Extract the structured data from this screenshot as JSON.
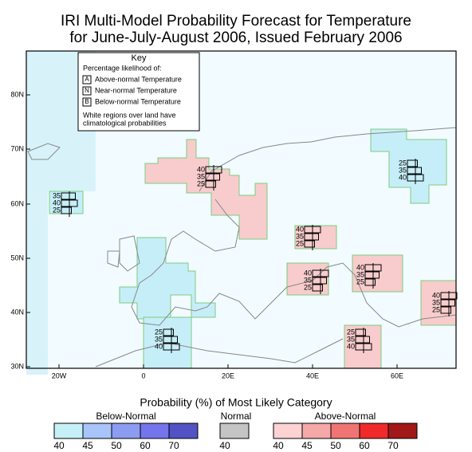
{
  "title": [
    "IRI Multi-Model Probability Forecast for Temperature",
    "for June-July-August 2006, Issued February 2006"
  ],
  "key": {
    "title": "Key",
    "subtitle": "Percentage likelihood of:",
    "items": [
      {
        "letter": "A",
        "text": "Above-normal Temperature"
      },
      {
        "letter": "N",
        "text": "Near-normal Temperature"
      },
      {
        "letter": "B",
        "text": "Below-normal Temperature"
      }
    ],
    "note": [
      "White regions over land have",
      "climatological probabilities"
    ]
  },
  "lat_labels": [
    "80N",
    "70N",
    "60N",
    "50N",
    "40N",
    "30N"
  ],
  "lon_labels": [
    "20W",
    "0",
    "20E",
    "40E",
    "60E"
  ],
  "glyphs": [
    [
      40,
      35,
      25
    ],
    [
      25,
      35,
      40
    ],
    [
      35,
      40,
      25
    ],
    [
      40,
      35,
      25
    ],
    [
      40,
      35,
      25
    ],
    [
      40,
      35,
      25
    ],
    [
      40,
      35,
      25
    ],
    [
      25,
      35,
      40
    ],
    [
      25,
      35,
      40
    ]
  ],
  "legend": {
    "title": "Probability (%) of Most Likely Category",
    "groups": [
      {
        "name": "Below-Normal",
        "colors": [
          "#c6f0f8",
          "#a8c4f8",
          "#8c9cf0",
          "#7474ec",
          "#5252c4"
        ],
        "labels": [
          40,
          45,
          50,
          60,
          70
        ]
      },
      {
        "name": "Normal",
        "colors": [
          "#c4c4c4"
        ],
        "labels": [
          40
        ]
      },
      {
        "name": "Above-Normal",
        "colors": [
          "#fcd2d2",
          "#f4a8a8",
          "#f07474",
          "#f02a2a",
          "#a01818"
        ],
        "labels": [
          40,
          45,
          50,
          60,
          70
        ]
      }
    ]
  }
}
